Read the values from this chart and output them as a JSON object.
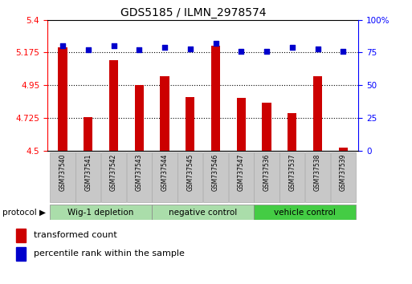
{
  "title": "GDS5185 / ILMN_2978574",
  "samples": [
    "GSM737540",
    "GSM737541",
    "GSM737542",
    "GSM737543",
    "GSM737544",
    "GSM737545",
    "GSM737546",
    "GSM737547",
    "GSM737536",
    "GSM737537",
    "GSM737538",
    "GSM737539"
  ],
  "transformed_count": [
    5.21,
    4.73,
    5.12,
    4.95,
    5.01,
    4.87,
    5.22,
    4.86,
    4.83,
    4.76,
    5.01,
    4.52
  ],
  "percentile_rank": [
    80,
    77,
    80,
    77,
    79,
    78,
    82,
    76,
    76,
    79,
    78,
    76
  ],
  "groups": [
    {
      "label": "Wig-1 depletion",
      "start": 0,
      "end": 4,
      "color": "#AADDAA"
    },
    {
      "label": "negative control",
      "start": 4,
      "end": 8,
      "color": "#AADDAA"
    },
    {
      "label": "vehicle control",
      "start": 8,
      "end": 12,
      "color": "#44CC44"
    }
  ],
  "ylim_left": [
    4.5,
    5.4
  ],
  "ylim_right": [
    0,
    100
  ],
  "yticks_left": [
    4.5,
    4.725,
    4.95,
    5.175,
    5.4
  ],
  "yticks_right": [
    0,
    25,
    50,
    75,
    100
  ],
  "grid_values": [
    4.725,
    4.95,
    5.175
  ],
  "bar_color": "#CC0000",
  "dot_color": "#0000CC",
  "sample_box_color": "#C8C8C8",
  "bar_width": 0.35,
  "dot_size": 18
}
